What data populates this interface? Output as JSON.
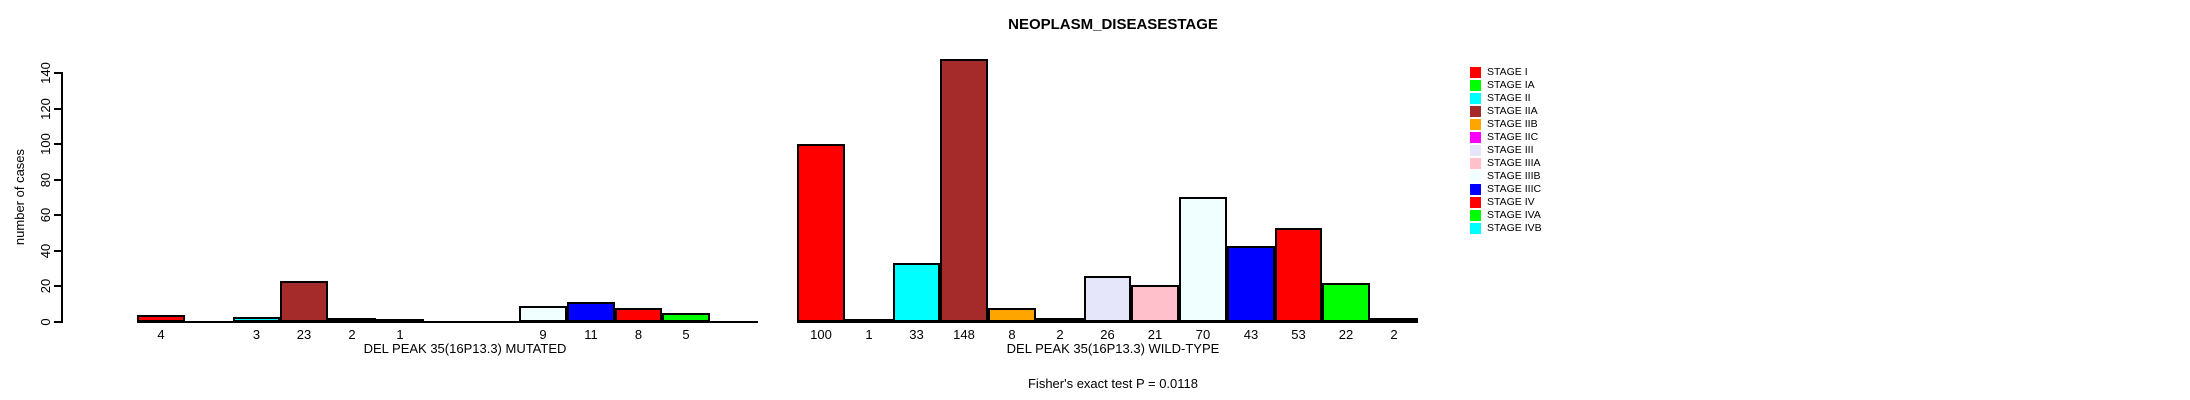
{
  "title": "NEOPLASM_DISEASESTAGE",
  "chart_data": {
    "type": "bar",
    "title": "NEOPLASM_DISEASESTAGE",
    "ylabel": "number of cases",
    "xlabel": "",
    "ylim": [
      0,
      148
    ],
    "yticks": [
      0,
      20,
      40,
      60,
      80,
      100,
      120,
      140
    ],
    "grid": false,
    "legend_position": "right",
    "background": "#FFFFFF",
    "bar_border_color": "#000000",
    "categories": [
      "STAGE I",
      "STAGE IA",
      "STAGE II",
      "STAGE IIA",
      "STAGE IIB",
      "STAGE IIC",
      "STAGE III",
      "STAGE IIIA",
      "STAGE IIIB",
      "STAGE IIIC",
      "STAGE IV",
      "STAGE IVA",
      "STAGE IVB"
    ],
    "colors": [
      "#FF0000",
      "#00FF00",
      "#00FFFF",
      "#A52A2A",
      "#FFA500",
      "#FF00FF",
      "#E6E6FA",
      "#FFC0CB",
      "#F0FFFF",
      "#0000FF",
      "#FF0000",
      "#00FF00",
      "#00FFFF"
    ],
    "series": [
      {
        "name": "DEL PEAK 35(16P13.3) MUTATED",
        "values": [
          4,
          0,
          3,
          23,
          2,
          1,
          0,
          0,
          9,
          11,
          8,
          5,
          0
        ]
      },
      {
        "name": "DEL PEAK 35(16P13.3) WILD-TYPE",
        "values": [
          100,
          1,
          33,
          148,
          8,
          2,
          26,
          21,
          70,
          43,
          53,
          22,
          2
        ]
      }
    ],
    "bar_value_labels_shown_only_when_nonzero": true,
    "annotation": "Fisher's exact test P = 0.0118"
  }
}
